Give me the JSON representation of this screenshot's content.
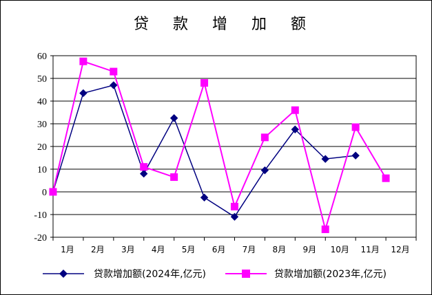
{
  "chart_data": {
    "type": "line",
    "title": "贷 款 增 加 额",
    "xlabel": "",
    "ylabel": "",
    "categories": [
      "1月",
      "2月",
      "3月",
      "4月",
      "5月",
      "6月",
      "7月",
      "8月",
      "9月",
      "10月",
      "11月",
      "12月"
    ],
    "ylim": [
      -20,
      60
    ],
    "yticks": [
      60,
      50,
      40,
      30,
      20,
      10,
      0,
      -10,
      -20
    ],
    "grid": true,
    "legend_position": "bottom",
    "series": [
      {
        "name": "贷款增加额(2024年,亿元)",
        "color": "#000080",
        "marker": "diamond",
        "values": [
          0,
          43.5,
          47,
          8,
          32.5,
          -2.5,
          -11,
          9.5,
          27.5,
          14.5,
          16,
          null
        ]
      },
      {
        "name": "贷款增加额(2023年,亿元)",
        "color": "#FF00FF",
        "marker": "square",
        "values": [
          0,
          57.5,
          53,
          11,
          6.5,
          48,
          -6.5,
          24,
          36,
          -16.5,
          28.5,
          6
        ]
      }
    ]
  }
}
